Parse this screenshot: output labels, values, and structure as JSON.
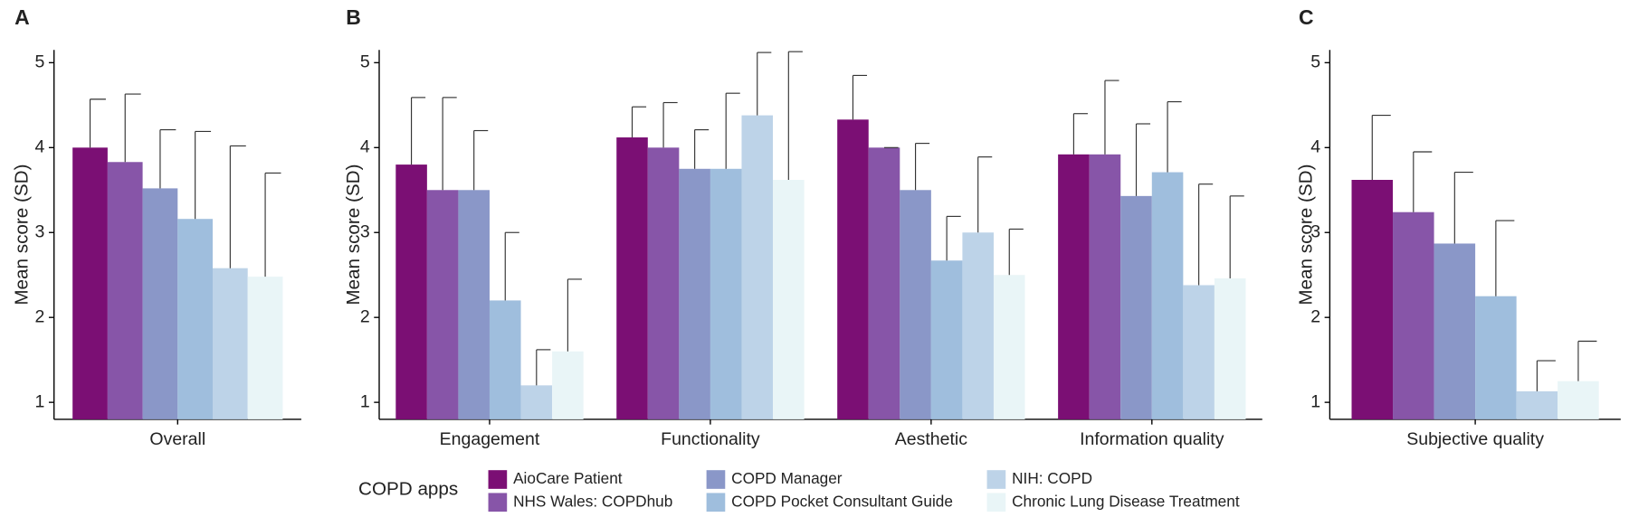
{
  "legend": {
    "title": "COPD apps"
  },
  "chart_data": [
    {
      "type": "bar",
      "panel_label": "A",
      "ylabel": "Mean score (SD)",
      "categories": [
        "Overall"
      ],
      "ylim": [
        0.8,
        5.15
      ],
      "yticks": [
        1,
        2,
        3,
        4,
        5
      ],
      "series": [
        {
          "color": "#7b0f74",
          "values": [
            4.0
          ],
          "errors": [
            0.57
          ]
        },
        {
          "color": "#8755a8",
          "values": [
            3.83
          ],
          "errors": [
            0.8
          ]
        },
        {
          "color": "#8a97c8",
          "values": [
            3.52
          ],
          "errors": [
            0.69
          ]
        },
        {
          "color": "#9fbedd",
          "values": [
            3.16
          ],
          "errors": [
            1.03
          ]
        },
        {
          "color": "#bdd3e8",
          "values": [
            2.58
          ],
          "errors": [
            1.44
          ]
        },
        {
          "color": "#e9f5f7",
          "values": [
            2.48
          ],
          "errors": [
            1.22
          ]
        }
      ]
    },
    {
      "type": "bar",
      "panel_label": "B",
      "ylabel": "Mean score (SD)",
      "categories": [
        "Engagement",
        "Functionality",
        "Aesthetic",
        "Information quality"
      ],
      "ylim": [
        0.8,
        5.15
      ],
      "yticks": [
        1,
        2,
        3,
        4,
        5
      ],
      "series": [
        {
          "name": "AioCare Patient",
          "color": "#7b0f74",
          "values": [
            3.8,
            4.12,
            4.33,
            3.92
          ],
          "errors": [
            0.79,
            0.36,
            0.52,
            0.48
          ]
        },
        {
          "name": "NHS Wales: COPDhub",
          "color": "#8755a8",
          "values": [
            3.5,
            4.0,
            4.0,
            3.92
          ],
          "errors": [
            1.09,
            0.53,
            0,
            0.87
          ]
        },
        {
          "name": "COPD Manager",
          "color": "#8a97c8",
          "values": [
            3.5,
            3.75,
            3.5,
            3.43
          ],
          "errors": [
            0.7,
            0.46,
            0.55,
            0.85
          ]
        },
        {
          "name": "COPD Pocket Consultant Guide",
          "color": "#9fbedd",
          "values": [
            2.2,
            3.75,
            2.67,
            3.71
          ],
          "errors": [
            0.8,
            0.89,
            0.52,
            0.83
          ]
        },
        {
          "name": "NIH: COPD",
          "color": "#bdd3e8",
          "values": [
            1.2,
            4.38,
            3.0,
            2.38
          ],
          "errors": [
            0.42,
            0.74,
            0.89,
            1.19
          ]
        },
        {
          "name": "Chronic Lung Disease Treatment",
          "color": "#e9f5f7",
          "values": [
            1.6,
            3.62,
            2.5,
            2.46
          ],
          "errors": [
            0.85,
            1.51,
            0.54,
            0.97
          ]
        }
      ]
    },
    {
      "type": "bar",
      "panel_label": "C",
      "ylabel": "Mean score (SD)",
      "categories": [
        "Subjective quality"
      ],
      "ylim": [
        0.8,
        5.15
      ],
      "yticks": [
        1,
        2,
        3,
        4,
        5
      ],
      "series": [
        {
          "color": "#7b0f74",
          "values": [
            3.62
          ],
          "errors": [
            0.76
          ]
        },
        {
          "color": "#8755a8",
          "values": [
            3.24
          ],
          "errors": [
            0.71
          ]
        },
        {
          "color": "#8a97c8",
          "values": [
            2.87
          ],
          "errors": [
            0.84
          ]
        },
        {
          "color": "#9fbedd",
          "values": [
            2.25
          ],
          "errors": [
            0.89
          ]
        },
        {
          "color": "#bdd3e8",
          "values": [
            1.13
          ],
          "errors": [
            0.36
          ]
        },
        {
          "color": "#e9f5f7",
          "values": [
            1.25
          ],
          "errors": [
            0.47
          ]
        }
      ]
    }
  ]
}
